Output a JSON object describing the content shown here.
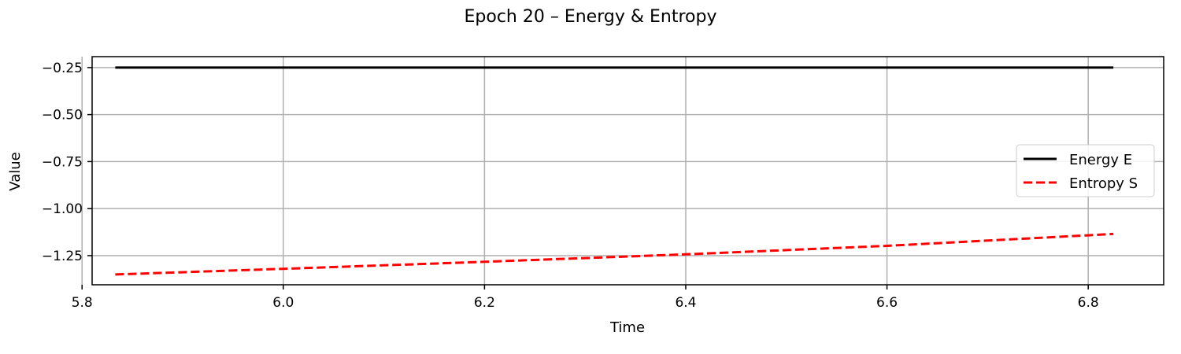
{
  "chart_data": {
    "type": "line",
    "title": "Epoch 20 – Energy & Entropy",
    "xlabel": "Time",
    "ylabel": "Value",
    "xlim": [
      5.81,
      6.875
    ],
    "ylim": [
      -1.405,
      -0.192
    ],
    "xticks": [
      5.8,
      6.0,
      6.2,
      6.4,
      6.6,
      6.8
    ],
    "yticks": [
      -1.25,
      -1.0,
      -0.75,
      -0.5,
      -0.25
    ],
    "xtick_labels": [
      "5.8",
      "6.0",
      "6.2",
      "6.4",
      "6.6",
      "6.8"
    ],
    "ytick_labels": [
      "−1.25",
      "−1.00",
      "−0.75",
      "−0.50",
      "−0.25"
    ],
    "grid": true,
    "legend_position": "center-right",
    "series": [
      {
        "name": "Energy E",
        "color": "#000000",
        "style": "solid",
        "x": [
          5.833,
          6.0,
          6.2,
          6.4,
          6.6,
          6.825
        ],
        "y": [
          -0.25,
          -0.25,
          -0.25,
          -0.25,
          -0.25,
          -0.25
        ]
      },
      {
        "name": "Entropy S",
        "color": "#ff0000",
        "style": "dashed",
        "x": [
          5.833,
          6.0,
          6.2,
          6.4,
          6.6,
          6.825
        ],
        "y": [
          -1.35,
          -1.32,
          -1.283,
          -1.243,
          -1.198,
          -1.135
        ]
      }
    ]
  }
}
